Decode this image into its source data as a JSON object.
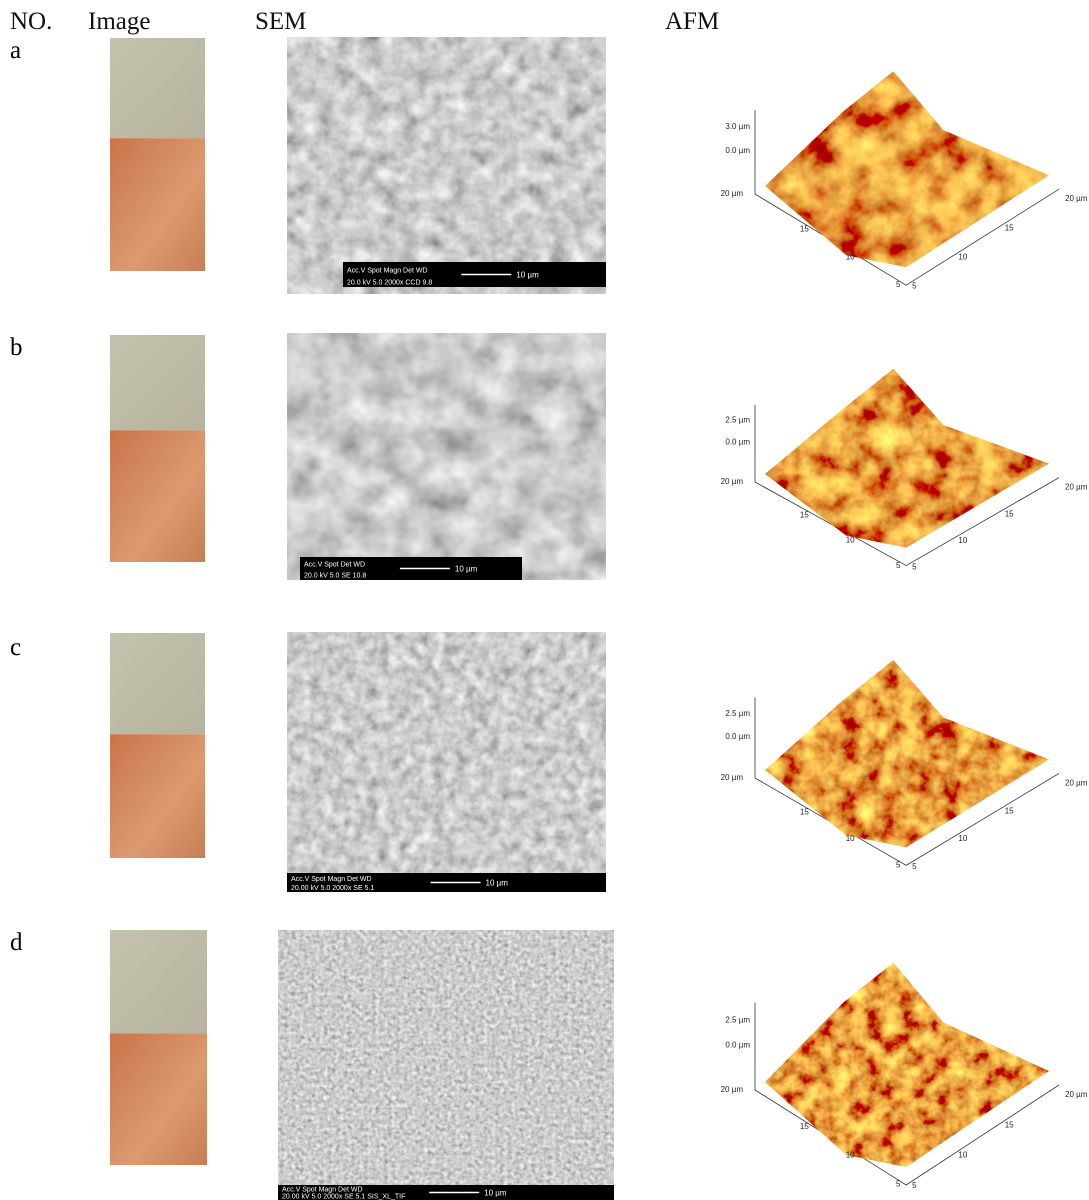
{
  "header": {
    "no": "NO.",
    "image": "Image",
    "sem": "SEM",
    "afm": "AFM"
  },
  "rows": [
    {
      "label": "a",
      "sem": {
        "info": "Acc.V Spot Magn Det WD",
        "info2": "20.0 kV 5.0 2000x CCD 9.8",
        "scale": "10 µm"
      },
      "afm": {
        "z_ticks": [
          "3.0 µm",
          "0.0 µm"
        ],
        "left_axis": [
          "20 µm",
          "15",
          "10",
          "5"
        ],
        "right_axis": [
          "20 µm",
          "15",
          "10",
          "5"
        ]
      }
    },
    {
      "label": "b",
      "sem": {
        "info": "Acc.V Spot Det WD",
        "info2": "20.0 kV 5.0 SE 10.8",
        "scale": "10 µm"
      },
      "afm": {
        "z_ticks": [
          "2.5 µm",
          "0.0 µm"
        ],
        "left_axis": [
          "20 µm",
          "15",
          "10",
          "5"
        ],
        "right_axis": [
          "20 µm",
          "15",
          "10",
          "5"
        ]
      }
    },
    {
      "label": "c",
      "sem": {
        "info": "Acc.V Spot Magn Det WD",
        "info2": "20.00 kV 5.0 2000x SE 5.1",
        "scale": "10 µm"
      },
      "afm": {
        "z_ticks": [
          "2.5 µm",
          "0.0 µm"
        ],
        "left_axis": [
          "20 µm",
          "15",
          "10",
          "5"
        ],
        "right_axis": [
          "20 µm",
          "15",
          "10",
          "5"
        ]
      }
    },
    {
      "label": "d",
      "sem": {
        "info": "Acc.V Spot Magn Det WD",
        "info2": "20.00 kV 5.0 2000x SE 5.1 SIS_XL_TIF",
        "scale": "10 µm"
      },
      "afm": {
        "z_ticks": [
          "2.5 µm",
          "0.0 µm"
        ],
        "left_axis": [
          "20 µm",
          "15",
          "10",
          "5"
        ],
        "right_axis": [
          "20 µm",
          "15",
          "10",
          "5"
        ]
      }
    }
  ]
}
